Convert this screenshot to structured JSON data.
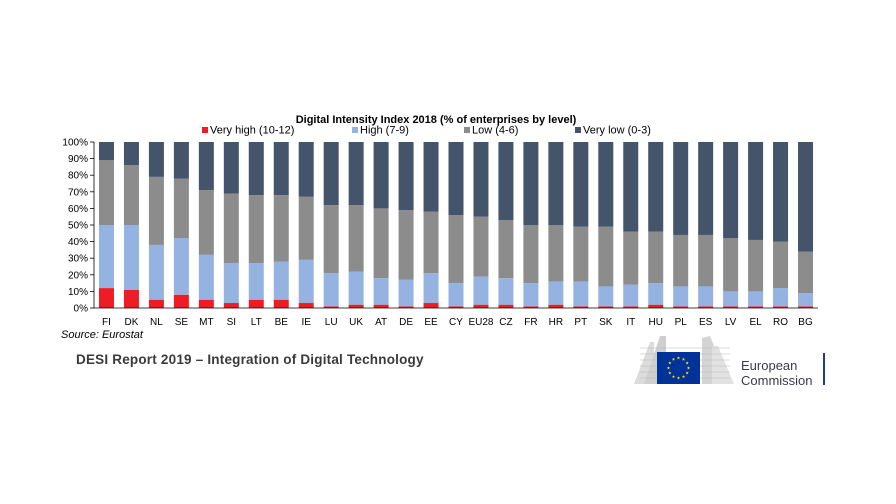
{
  "chart_data": {
    "type": "stacked-bar",
    "title": "Digital Intensity Index 2018 (% of enterprises by level)",
    "categories": [
      "FI",
      "DK",
      "NL",
      "SE",
      "MT",
      "SI",
      "LT",
      "BE",
      "IE",
      "LU",
      "UK",
      "AT",
      "DE",
      "EE",
      "CY",
      "EU28",
      "CZ",
      "FR",
      "HR",
      "PT",
      "SK",
      "IT",
      "HU",
      "PL",
      "ES",
      "LV",
      "EL",
      "RO",
      "BG"
    ],
    "series": [
      {
        "name": "Very high (10-12)",
        "color": "#ee1c25",
        "values": [
          12,
          11,
          5,
          8,
          5,
          3,
          5,
          5,
          3,
          1,
          2,
          2,
          1,
          3,
          1,
          2,
          2,
          1,
          2,
          1,
          1,
          1,
          2,
          1,
          1,
          1,
          1,
          1,
          1
        ]
      },
      {
        "name": "High (7-9)",
        "color": "#95b3e1",
        "values": [
          38,
          39,
          33,
          34,
          27,
          24,
          22,
          23,
          26,
          20,
          20,
          16,
          16,
          18,
          14,
          17,
          16,
          14,
          14,
          15,
          12,
          13,
          13,
          12,
          12,
          9,
          9,
          11,
          8
        ]
      },
      {
        "name": "Low (4-6)",
        "color": "#8c8c8c",
        "values": [
          39,
          36,
          41,
          36,
          39,
          42,
          41,
          40,
          38,
          41,
          40,
          42,
          42,
          37,
          41,
          36,
          35,
          35,
          34,
          33,
          36,
          32,
          31,
          31,
          31,
          32,
          31,
          28,
          25
        ]
      },
      {
        "name": "Very low (0-3)",
        "color": "#44546a",
        "values": [
          11,
          14,
          21,
          22,
          29,
          31,
          32,
          32,
          33,
          38,
          38,
          40,
          41,
          42,
          44,
          45,
          47,
          50,
          50,
          51,
          51,
          54,
          54,
          56,
          56,
          58,
          59,
          60,
          66
        ]
      }
    ],
    "yticks": [
      "0%",
      "10%",
      "20%",
      "30%",
      "40%",
      "50%",
      "60%",
      "70%",
      "80%",
      "90%",
      "100%"
    ],
    "ylim": [
      0,
      100
    ],
    "legend_position": "top",
    "grid": false
  },
  "source": "Source: Eurostat",
  "report_title": "DESI Report 2019 – Integration of Digital Technology",
  "logo": {
    "line1": "European",
    "line2": "Commission",
    "flag_color": "#003399",
    "star_color": "#ffdd00"
  }
}
